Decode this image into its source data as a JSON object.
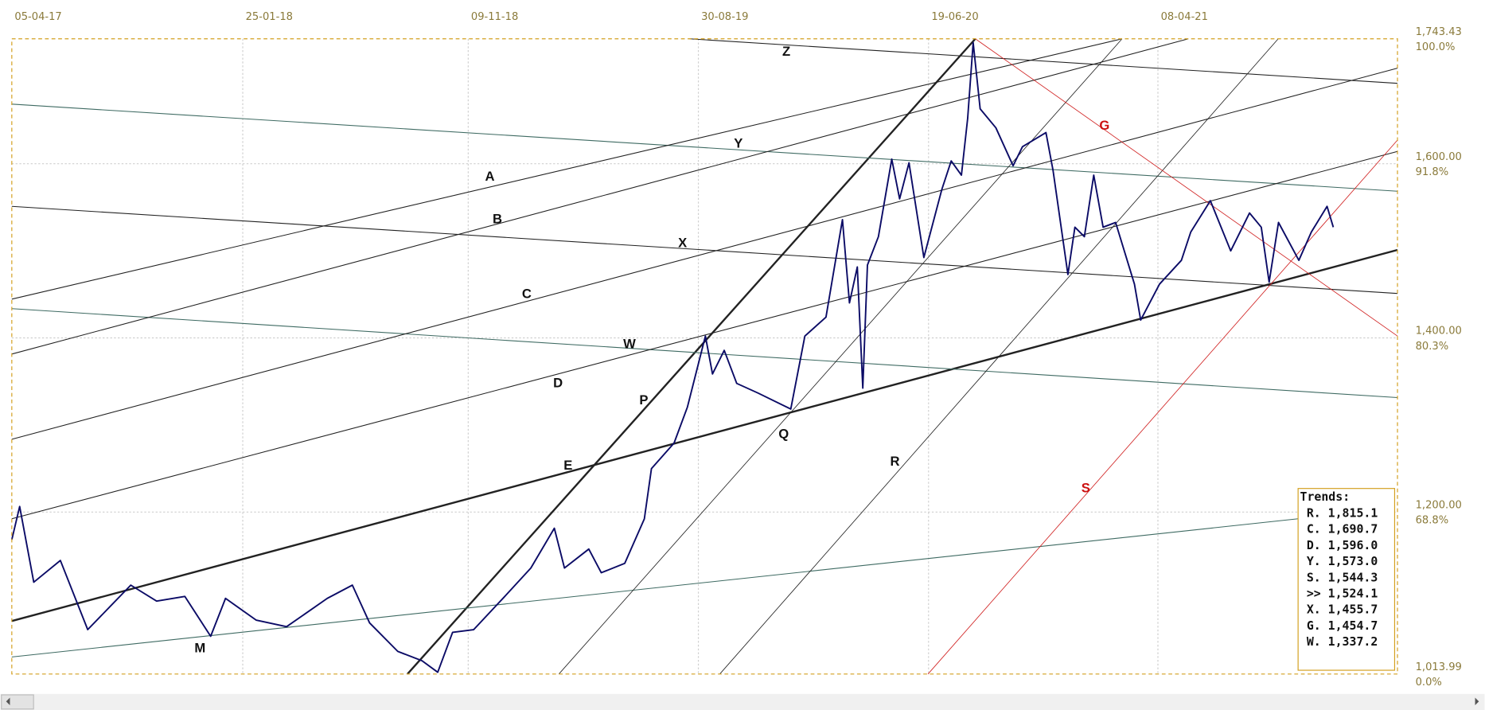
{
  "chart_data": {
    "type": "line",
    "xlim": [
      "05-04-17",
      "08-02-22"
    ],
    "xticks": [
      "05-04-17",
      "25-01-18",
      "09-11-18",
      "30-08-19",
      "19-06-20",
      "08-04-21"
    ],
    "ylim": [
      1013.99,
      1743.43
    ],
    "yticks": [
      {
        "value": 1743.43,
        "label": "1,743.43"
      },
      {
        "value": 1600,
        "label": "1,600.00"
      },
      {
        "value": 1400,
        "label": "1,400.00"
      },
      {
        "value": 1200,
        "label": "1,200.00"
      },
      {
        "value": 1013.99,
        "label": "1,013.99"
      }
    ],
    "y_percent_labels": [
      "100.0%",
      "91.8%",
      "80.3%",
      "68.8%",
      "0.0%"
    ],
    "grid": true,
    "x": [
      "05-04-17",
      "15-04-17",
      "03-05-17",
      "06-06-17",
      "11-07-17",
      "04-09-17",
      "07-10-17",
      "12-11-17",
      "15-12-17",
      "03-01-18",
      "11-02-18",
      "22-03-18",
      "13-05-18",
      "14-06-18",
      "06-07-18",
      "11-08-18",
      "11-09-18",
      "01-10-18",
      "20-10-18",
      "16-11-18",
      "28-12-18",
      "28-01-19",
      "27-02-19",
      "12-03-19",
      "12-04-19",
      "28-04-19",
      "28-05-19",
      "22-06-19",
      "01-07-19",
      "30-07-19",
      "16-08-19",
      "08-09-19",
      "17-09-19",
      "02-10-19",
      "18-10-19",
      "14-11-19",
      "26-12-19",
      "13-01-20",
      "09-02-20",
      "01-03-20",
      "10-03-20",
      "20-03-20",
      "27-03-20",
      "02-04-20",
      "16-04-20",
      "03-05-20",
      "13-05-20",
      "25-05-20",
      "13-06-20",
      "06-07-20",
      "18-07-20",
      "31-07-20",
      "08-08-20",
      "15-08-20",
      "24-08-20",
      "13-09-20",
      "05-10-20",
      "17-10-20",
      "16-11-20",
      "25-11-20",
      "14-12-20",
      "23-12-20",
      "04-01-21",
      "16-01-21",
      "28-01-21",
      "13-02-21",
      "09-03-21",
      "17-03-21",
      "10-04-21",
      "08-05-21",
      "20-05-21",
      "14-06-21",
      "10-07-21",
      "03-08-21",
      "18-08-21",
      "28-08-21",
      "09-09-21",
      "05-10-21",
      "21-10-21",
      "10-11-21",
      "18-11-21"
    ],
    "series": [
      {
        "color": "#0b0b66",
        "values": [
          1168.3,
          1206.4,
          1119.4,
          1144.4,
          1065.0,
          1116.1,
          1097.7,
          1103.1,
          1057.4,
          1100.9,
          1075.9,
          1068.3,
          1100.9,
          1116.1,
          1072.7,
          1040.0,
          1029.2,
          1016.1,
          1061.8,
          1065.0,
          1105.3,
          1135.7,
          1181.4,
          1135.7,
          1157.5,
          1130.3,
          1141.1,
          1192.2,
          1249.9,
          1279.2,
          1320.5,
          1402.1,
          1358.6,
          1385.7,
          1347.7,
          1336.8,
          1318.3,
          1402.1,
          1423.8,
          1535.8,
          1440.1,
          1481.4,
          1342.3,
          1483.6,
          1516.2,
          1605.3,
          1559.7,
          1601.0,
          1492.3,
          1570.5,
          1603.2,
          1586.9,
          1652.1,
          1739.1,
          1663.0,
          1641.2,
          1597.7,
          1619.5,
          1635.8,
          1592.3,
          1472.7,
          1527.1,
          1516.2,
          1586.9,
          1527.1,
          1532.5,
          1461.8,
          1420.5,
          1461.8,
          1489.0,
          1521.6,
          1557.5,
          1499.9,
          1543.4,
          1527.1,
          1464.0,
          1532.5,
          1489.0,
          1521.6,
          1551.0,
          1527.1
        ]
      }
    ],
    "annotations": [
      "Z",
      "Y",
      "A",
      "B",
      "X",
      "C",
      "W",
      "D",
      "P",
      "Q",
      "E",
      "R",
      "S",
      "G",
      "M"
    ],
    "trends": {
      "title": "Trends:",
      "rows": [
        "R. 1,815.1",
        "C. 1,690.7",
        "D. 1,596.0",
        "Y. 1,573.0",
        "S. 1,544.3",
        ">> 1,524.1",
        "X. 1,455.7",
        "G. 1,454.7",
        "W. 1,337.2"
      ]
    }
  }
}
